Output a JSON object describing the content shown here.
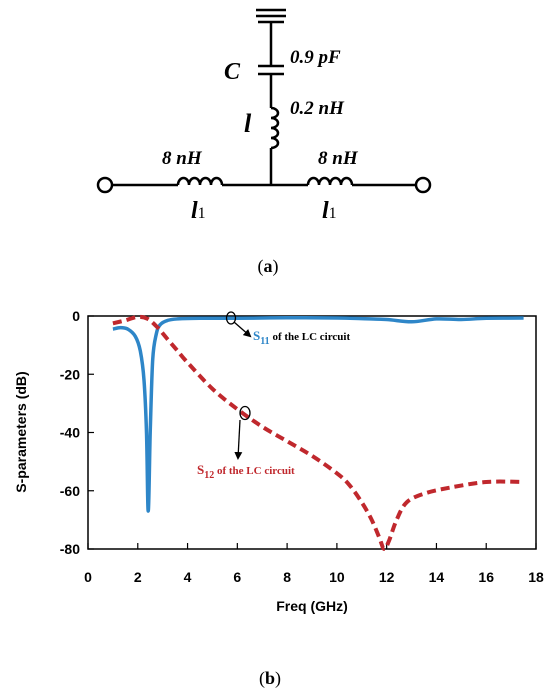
{
  "circuit": {
    "capacitor_symbol": "C",
    "capacitor_value": "0.9 pF",
    "inductor_symbol": "l",
    "inductor_value": "0.2 nH",
    "left_inductor_value": "8 nH",
    "left_inductor_symbol": "l",
    "left_inductor_subscript": "1",
    "right_inductor_value": "8 nH",
    "right_inductor_symbol": "l",
    "right_inductor_subscript": "1"
  },
  "caption_a": {
    "open": "(",
    "letter": "a",
    "close": ")"
  },
  "caption_b": {
    "open": "(",
    "letter": "b",
    "close": ")"
  },
  "chart_data": {
    "type": "line",
    "xlabel": "Freq (GHz)",
    "ylabel": "S-parameters (dB)",
    "xlim": [
      0,
      18
    ],
    "ylim": [
      -80,
      0
    ],
    "xticks": [
      "0",
      "2",
      "4",
      "6",
      "8",
      "10",
      "12",
      "14",
      "16",
      "18"
    ],
    "yticks": [
      "0",
      "-20",
      "-40",
      "-60",
      "-80"
    ],
    "grid": false,
    "series": [
      {
        "name": "S11 of the LC circuit",
        "label_main": "S",
        "label_sub": "11",
        "label_rest": " of the LC circuit",
        "color": "#2e86c8",
        "style": "solid",
        "x": [
          1.0,
          1.3,
          1.6,
          1.9,
          2.1,
          2.25,
          2.35,
          2.42,
          2.5,
          2.6,
          2.75,
          2.9,
          3.2,
          3.6,
          4.5,
          6,
          8,
          10,
          11,
          12,
          13,
          14,
          15,
          16,
          17.5
        ],
        "y": [
          -4.5,
          -4,
          -4.5,
          -7,
          -12,
          -22,
          -40,
          -67,
          -40,
          -15,
          -6,
          -3,
          -1.5,
          -1,
          -0.8,
          -0.8,
          -0.6,
          -0.7,
          -0.9,
          -1.2,
          -2,
          -1,
          -1.2,
          -0.8,
          -0.7
        ]
      },
      {
        "name": "S12 of the LC circuit",
        "label_main": "S",
        "label_sub": "12",
        "label_rest": " of the LC circuit",
        "color": "#c0282d",
        "style": "dashed",
        "x": [
          1.0,
          1.5,
          2.0,
          2.4,
          2.8,
          3.2,
          3.6,
          4.0,
          5.0,
          6.0,
          7.0,
          8.0,
          9.0,
          10.0,
          10.5,
          11.0,
          11.4,
          11.7,
          11.9,
          12.1,
          12.4,
          12.8,
          13.5,
          14.5,
          16.0,
          17.5
        ],
        "y": [
          -2.5,
          -1.5,
          -0.3,
          -1,
          -4,
          -8,
          -12,
          -16,
          -25,
          -32,
          -38,
          -43,
          -48,
          -54,
          -58,
          -64,
          -70,
          -76,
          -80,
          -77,
          -70,
          -64,
          -61,
          -59,
          -57,
          -57
        ]
      }
    ]
  }
}
